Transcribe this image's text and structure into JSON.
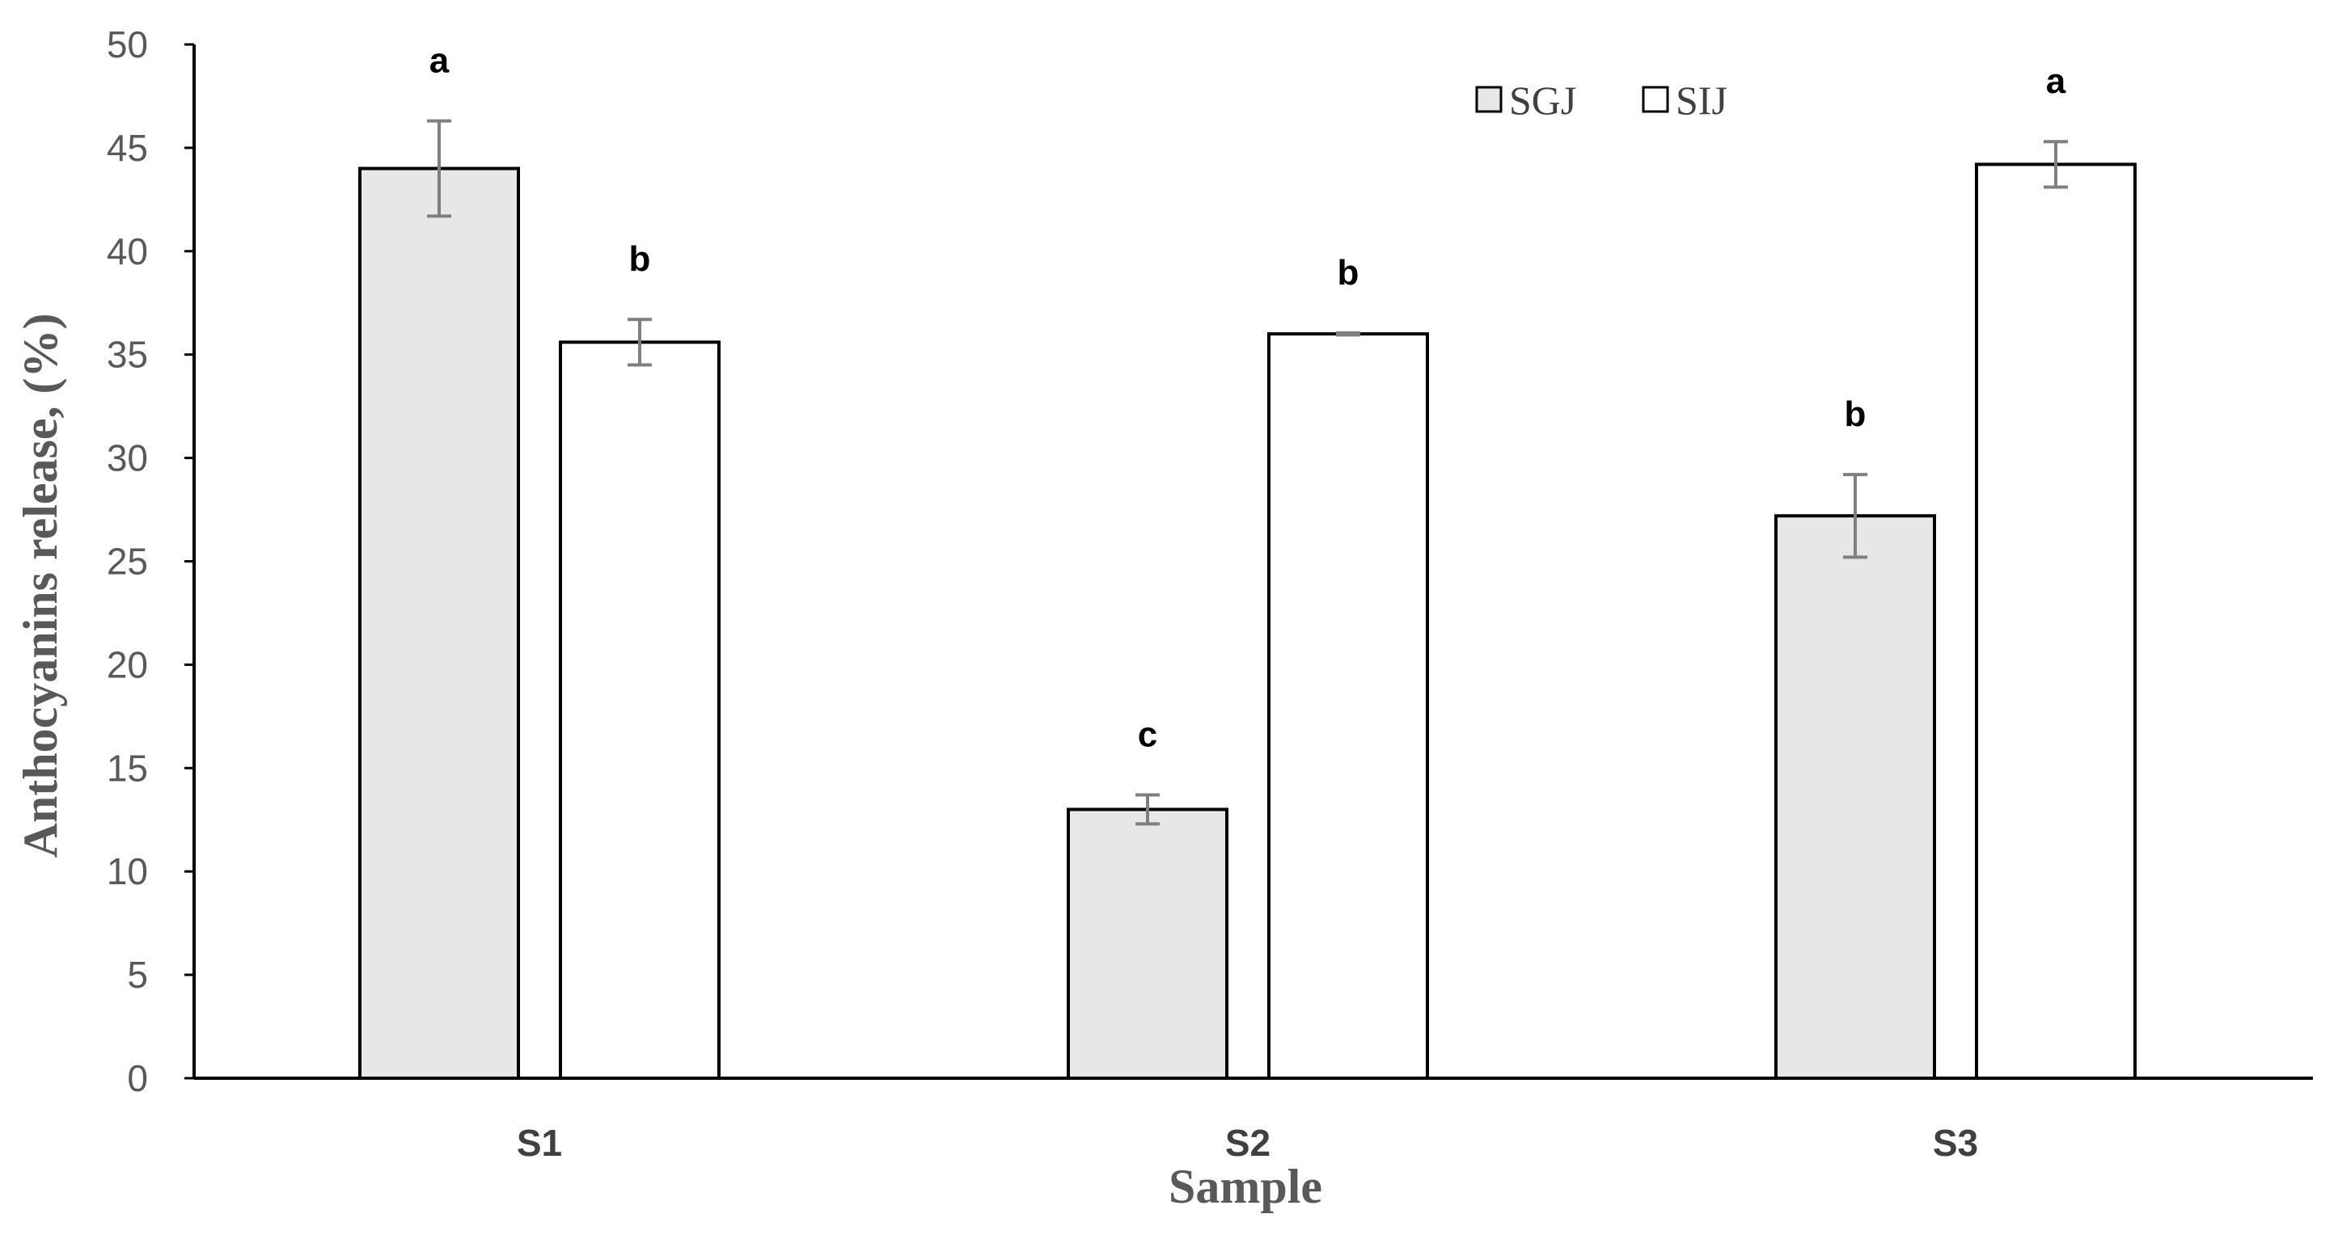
{
  "chart_data": {
    "type": "bar",
    "categories": [
      "S1",
      "S2",
      "S3"
    ],
    "series": [
      {
        "name": "SGJ",
        "values": [
          44.0,
          13.0,
          27.2
        ],
        "errors": [
          2.3,
          0.7,
          2.0
        ],
        "letters": [
          "a",
          "c",
          "b"
        ],
        "color": "#e7e7e7"
      },
      {
        "name": "SIJ",
        "values": [
          35.6,
          36.0,
          44.2
        ],
        "errors": [
          1.1,
          0.05,
          1.1
        ],
        "letters": [
          "b",
          "b",
          "a"
        ],
        "color": "#ffffff"
      }
    ],
    "xlabel": "Sample",
    "ylabel": "Anthocyanins release, (%)",
    "ylim": [
      0,
      50
    ],
    "yticks": [
      0,
      5,
      10,
      15,
      20,
      25,
      30,
      35,
      40,
      45,
      50
    ],
    "grid": false,
    "legend_position": "top-right",
    "bar_edge_color": "#000000",
    "error_bar_color": "#7f7f7f"
  }
}
